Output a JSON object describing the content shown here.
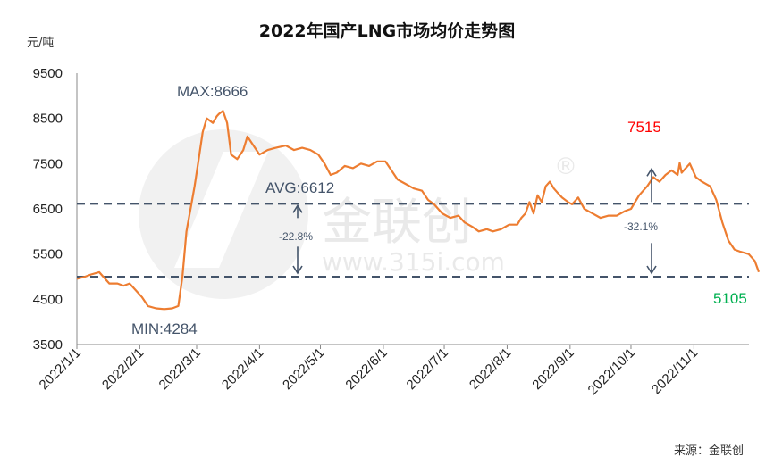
{
  "chart_data": {
    "type": "line",
    "title": "2022年国产LNG市场均价走势图",
    "ylabel": "元/吨",
    "ylim": [
      3500,
      9500
    ],
    "yticks": [
      "3500",
      "4500",
      "5500",
      "6500",
      "7500",
      "8500",
      "9500"
    ],
    "yticks_num": [
      3500,
      4500,
      5500,
      6500,
      7500,
      8500,
      9500
    ],
    "grid": false,
    "categories": [
      "2022/1/1",
      "2022/2/1",
      "2022/3/1",
      "2022/4/1",
      "2022/5/1",
      "2022/6/1",
      "2022/7/1",
      "2022/8/1",
      "2022/9/1",
      "2022/10/1",
      "2022/11/1"
    ],
    "x_dates": [
      "2022-01-01",
      "2022-02-01",
      "2022-03-01",
      "2022-04-01",
      "2022-05-01",
      "2022-06-01",
      "2022-07-01",
      "2022-08-01",
      "2022-09-01",
      "2022-10-01",
      "2022-11-01"
    ],
    "line_color": "#ed7d31",
    "series": [
      {
        "points": [
          [
            "2022-01-01",
            4950
          ],
          [
            "2022-01-05",
            5000
          ],
          [
            "2022-01-08",
            5050
          ],
          [
            "2022-01-12",
            5100
          ],
          [
            "2022-01-14",
            5000
          ],
          [
            "2022-01-17",
            4850
          ],
          [
            "2022-01-21",
            4850
          ],
          [
            "2022-01-24",
            4800
          ],
          [
            "2022-01-27",
            4850
          ],
          [
            "2022-01-30",
            4700
          ],
          [
            "2022-02-02",
            4550
          ],
          [
            "2022-02-05",
            4350
          ],
          [
            "2022-02-09",
            4300
          ],
          [
            "2022-02-13",
            4284
          ],
          [
            "2022-02-17",
            4300
          ],
          [
            "2022-02-20",
            4350
          ],
          [
            "2022-02-22",
            5000
          ],
          [
            "2022-02-24",
            6000
          ],
          [
            "2022-02-26",
            6500
          ],
          [
            "2022-02-28",
            7000
          ],
          [
            "2022-03-02",
            7600
          ],
          [
            "2022-03-04",
            8200
          ],
          [
            "2022-03-06",
            8500
          ],
          [
            "2022-03-09",
            8400
          ],
          [
            "2022-03-11",
            8550
          ],
          [
            "2022-03-12",
            8600
          ],
          [
            "2022-03-14",
            8666
          ],
          [
            "2022-03-16",
            8400
          ],
          [
            "2022-03-18",
            7700
          ],
          [
            "2022-03-21",
            7600
          ],
          [
            "2022-03-24",
            7800
          ],
          [
            "2022-03-26",
            8100
          ],
          [
            "2022-03-29",
            7900
          ],
          [
            "2022-04-01",
            7700
          ],
          [
            "2022-04-05",
            7800
          ],
          [
            "2022-04-09",
            7850
          ],
          [
            "2022-04-14",
            7900
          ],
          [
            "2022-04-18",
            7800
          ],
          [
            "2022-04-22",
            7850
          ],
          [
            "2022-04-26",
            7800
          ],
          [
            "2022-04-30",
            7700
          ],
          [
            "2022-05-03",
            7500
          ],
          [
            "2022-05-06",
            7250
          ],
          [
            "2022-05-09",
            7300
          ],
          [
            "2022-05-13",
            7450
          ],
          [
            "2022-05-17",
            7400
          ],
          [
            "2022-05-21",
            7500
          ],
          [
            "2022-05-25",
            7450
          ],
          [
            "2022-05-29",
            7550
          ],
          [
            "2022-06-02",
            7550
          ],
          [
            "2022-06-05",
            7350
          ],
          [
            "2022-06-08",
            7150
          ],
          [
            "2022-06-12",
            7050
          ],
          [
            "2022-06-16",
            6950
          ],
          [
            "2022-06-20",
            6900
          ],
          [
            "2022-06-23",
            6700
          ],
          [
            "2022-06-26",
            6600
          ],
          [
            "2022-06-30",
            6400
          ],
          [
            "2022-07-04",
            6300
          ],
          [
            "2022-07-08",
            6350
          ],
          [
            "2022-07-11",
            6200
          ],
          [
            "2022-07-15",
            6100
          ],
          [
            "2022-07-18",
            6000
          ],
          [
            "2022-07-22",
            6050
          ],
          [
            "2022-07-25",
            6000
          ],
          [
            "2022-07-29",
            6050
          ],
          [
            "2022-08-02",
            6150
          ],
          [
            "2022-08-06",
            6150
          ],
          [
            "2022-08-08",
            6300
          ],
          [
            "2022-08-10",
            6400
          ],
          [
            "2022-08-12",
            6650
          ],
          [
            "2022-08-14",
            6400
          ],
          [
            "2022-08-16",
            6800
          ],
          [
            "2022-08-18",
            6650
          ],
          [
            "2022-08-20",
            7000
          ],
          [
            "2022-08-22",
            7100
          ],
          [
            "2022-08-24",
            6950
          ],
          [
            "2022-08-26",
            6850
          ],
          [
            "2022-08-28",
            6750
          ],
          [
            "2022-08-31",
            6650
          ],
          [
            "2022-09-02",
            6600
          ],
          [
            "2022-09-05",
            6750
          ],
          [
            "2022-09-08",
            6500
          ],
          [
            "2022-09-12",
            6400
          ],
          [
            "2022-09-16",
            6300
          ],
          [
            "2022-09-20",
            6350
          ],
          [
            "2022-09-24",
            6350
          ],
          [
            "2022-09-28",
            6450
          ],
          [
            "2022-10-01",
            6500
          ],
          [
            "2022-10-05",
            6800
          ],
          [
            "2022-10-09",
            7000
          ],
          [
            "2022-10-12",
            7200
          ],
          [
            "2022-10-15",
            7100
          ],
          [
            "2022-10-18",
            7250
          ],
          [
            "2022-10-21",
            7350
          ],
          [
            "2022-10-24",
            7250
          ],
          [
            "2022-10-25",
            7515
          ],
          [
            "2022-10-26",
            7300
          ],
          [
            "2022-10-28",
            7400
          ],
          [
            "2022-10-30",
            7500
          ],
          [
            "2022-11-02",
            7200
          ],
          [
            "2022-11-05",
            7100
          ],
          [
            "2022-11-09",
            7000
          ],
          [
            "2022-11-12",
            6700
          ],
          [
            "2022-11-15",
            6200
          ],
          [
            "2022-11-18",
            5800
          ],
          [
            "2022-11-21",
            5600
          ],
          [
            "2022-11-24",
            5550
          ],
          [
            "2022-11-28",
            5500
          ],
          [
            "2022-12-01",
            5350
          ],
          [
            "2022-12-03",
            5105
          ]
        ]
      }
    ],
    "avg_line": 6612,
    "min_ref_line": 5000,
    "annotations": {
      "max_label": "MAX:8666",
      "min_label": "MIN:4284",
      "avg_label": "AVG:6612",
      "avg_change": "-22.8%",
      "peak_label": "7515",
      "latest_label": "5105",
      "peak_change": "-32.1%"
    },
    "annotation_colors": {
      "normal": "#44546a",
      "peak": "#ff0000",
      "latest": "#00b050",
      "ref_lines": "#44546a"
    }
  },
  "watermark": {
    "brand": "金联创",
    "registered": "®",
    "site": "www.315i.com"
  },
  "source": "来源：金联创"
}
